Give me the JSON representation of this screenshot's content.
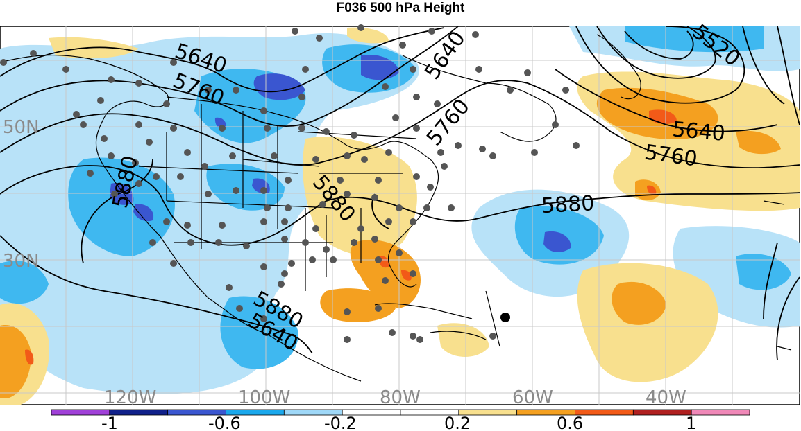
{
  "title": "F036 500 hPa Height",
  "map": {
    "lat_labels": [
      "50N",
      "30N"
    ],
    "lon_labels": [
      "120W",
      "100W",
      "80W",
      "60W",
      "40W"
    ],
    "contour_labels": [
      "5520",
      "5640",
      "5640",
      "5640",
      "5640",
      "5760",
      "5760",
      "5760",
      "5880",
      "5880",
      "5880",
      "5880"
    ]
  },
  "colorbar": {
    "labels": [
      "-1",
      "-0.6",
      "-0.2",
      "0.2",
      "0.6",
      "1"
    ],
    "colors": [
      "#a040d8",
      "#10208a",
      "#3a56d0",
      "#1aa8ec",
      "#9fd8f8",
      "#ffffff",
      "#ffffff",
      "#f8e08e",
      "#f4a020",
      "#f25a18",
      "#b02020",
      "#f088b8"
    ]
  }
}
